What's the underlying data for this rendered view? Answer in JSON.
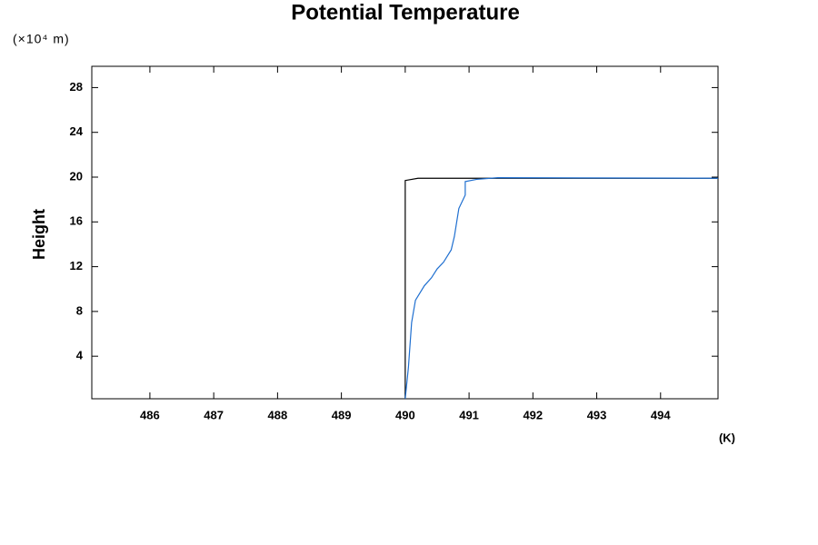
{
  "chart_data": {
    "type": "line",
    "title": "Potential Temperature",
    "y_unit": "(×10⁴ m)",
    "y_label": "Height",
    "x_unit": "(K)",
    "xlim": [
      485.09,
      494.9
    ],
    "ylim": [
      0.2,
      29.9
    ],
    "xticks": [
      486,
      487,
      488,
      489,
      490,
      491,
      492,
      493,
      494
    ],
    "yticks": [
      4,
      8,
      12,
      16,
      20,
      24,
      28
    ],
    "series": [
      {
        "color": "#000000",
        "x": [
          490.0,
          490.0,
          490.2,
          494.9
        ],
        "values": [
          0.2,
          19.7,
          19.9,
          19.9
        ]
      },
      {
        "color": "#1f6fd0",
        "x": [
          490.0,
          490.05,
          490.1,
          490.16,
          490.3,
          490.41,
          490.5,
          490.6,
          490.72,
          490.77,
          490.84,
          490.94,
          490.94,
          491.12,
          491.45,
          494.9
        ],
        "values": [
          0.2,
          3,
          7,
          9,
          10.3,
          11,
          11.8,
          12.4,
          13.5,
          14.7,
          17.2,
          18.4,
          19.6,
          19.8,
          19.95,
          19.9
        ]
      }
    ]
  }
}
